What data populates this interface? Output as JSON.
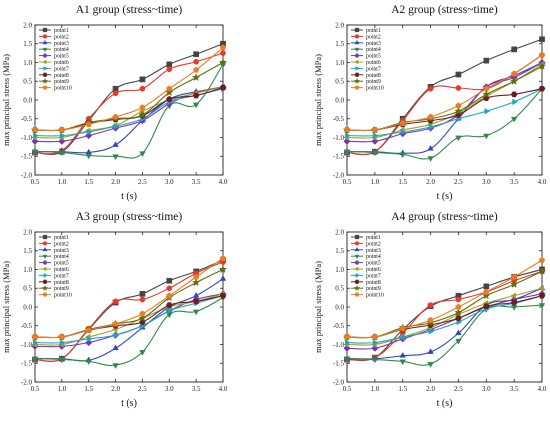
{
  "chart_data": [
    {
      "type": "line",
      "title": "A1 group (stress~time)",
      "xlabel": "t (s)",
      "ylabel": "max principal stress (MPa)",
      "xlim": [
        0.5,
        4.0
      ],
      "ylim": [
        -2.0,
        2.0
      ],
      "x_ticks": [
        "0.5",
        "1.0",
        "1.5",
        "2.0",
        "2.5",
        "3.0",
        "3.5",
        "4.0"
      ],
      "y_ticks": [
        "-2.0",
        "-1.5",
        "-1.0",
        "-0.5",
        "0.0",
        "0.5",
        "1.0",
        "1.5",
        "2.0"
      ],
      "x": [
        0.5,
        1.0,
        1.5,
        2.0,
        2.5,
        3.0,
        3.5,
        4.0
      ],
      "grid": false,
      "legend_position": "top-left",
      "series": [
        {
          "name": "point1",
          "color": "#444444",
          "marker": "square",
          "values": [
            -1.4,
            -1.38,
            -0.55,
            0.3,
            0.55,
            0.95,
            1.22,
            1.5
          ]
        },
        {
          "name": "point2",
          "color": "#e8392b",
          "marker": "circle",
          "values": [
            -1.4,
            -1.35,
            -0.5,
            0.18,
            0.3,
            0.82,
            1.02,
            1.25
          ]
        },
        {
          "name": "point3",
          "color": "#2e46c8",
          "marker": "triangle-up",
          "values": [
            -1.38,
            -1.38,
            -1.4,
            -1.2,
            -0.55,
            0.02,
            0.22,
            0.32
          ]
        },
        {
          "name": "point4",
          "color": "#2c8a4a",
          "marker": "triangle-down",
          "values": [
            -1.37,
            -1.4,
            -1.48,
            -1.5,
            -1.42,
            -0.15,
            -0.12,
            0.95
          ]
        },
        {
          "name": "point5",
          "color": "#7a33b8",
          "marker": "diamond",
          "values": [
            -1.1,
            -1.1,
            -0.95,
            -0.75,
            -0.55,
            -0.1,
            0.2,
            0.35
          ]
        },
        {
          "name": "point6",
          "color": "#a3a21b",
          "marker": "triangle-left",
          "values": [
            -1.0,
            -1.0,
            -0.82,
            -0.68,
            -0.3,
            0.0,
            0.18,
            0.35
          ]
        },
        {
          "name": "point7",
          "color": "#18a7c4",
          "marker": "triangle-right",
          "values": [
            -0.95,
            -0.95,
            -0.85,
            -0.7,
            -0.5,
            -0.05,
            0.12,
            0.3
          ]
        },
        {
          "name": "point8",
          "color": "#6e1e1e",
          "marker": "hexagon",
          "values": [
            -0.8,
            -0.8,
            -0.62,
            -0.52,
            -0.42,
            0.02,
            0.12,
            0.33
          ]
        },
        {
          "name": "point9",
          "color": "#5f6e10",
          "marker": "star",
          "values": [
            -0.8,
            -0.8,
            -0.6,
            -0.5,
            -0.4,
            0.2,
            0.6,
            1.0
          ]
        },
        {
          "name": "point10",
          "color": "#ec7c1d",
          "marker": "pentagon",
          "values": [
            -0.8,
            -0.8,
            -0.65,
            -0.45,
            -0.2,
            0.3,
            0.8,
            1.4
          ]
        }
      ]
    },
    {
      "type": "line",
      "title": "A2 group (stress~time)",
      "xlabel": "t (s)",
      "ylabel": "max principal stress (MPa)",
      "xlim": [
        0.5,
        4.0
      ],
      "ylim": [
        -2.0,
        2.0
      ],
      "x_ticks": [
        "0.5",
        "1.0",
        "1.5",
        "2.0",
        "2.5",
        "3.0",
        "3.5",
        "4.0"
      ],
      "y_ticks": [
        "-2.0",
        "-1.5",
        "-1.0",
        "-0.5",
        "0.0",
        "0.5",
        "1.0",
        "1.5",
        "2.0"
      ],
      "x": [
        0.5,
        1.0,
        1.5,
        2.0,
        2.5,
        3.0,
        3.5,
        4.0
      ],
      "grid": false,
      "legend_position": "top-left",
      "series": [
        {
          "name": "point1",
          "color": "#444444",
          "marker": "square",
          "values": [
            -1.4,
            -1.38,
            -0.5,
            0.35,
            0.68,
            1.05,
            1.35,
            1.62
          ]
        },
        {
          "name": "point2",
          "color": "#e8392b",
          "marker": "circle",
          "values": [
            -1.4,
            -1.38,
            -0.55,
            0.3,
            0.32,
            0.3,
            0.7,
            1.2
          ]
        },
        {
          "name": "point3",
          "color": "#2e46c8",
          "marker": "triangle-up",
          "values": [
            -1.38,
            -1.38,
            -1.42,
            -1.3,
            -0.5,
            0.35,
            0.65,
            1.0
          ]
        },
        {
          "name": "point4",
          "color": "#2c8a4a",
          "marker": "triangle-down",
          "values": [
            -1.37,
            -1.4,
            -1.45,
            -1.55,
            -1.0,
            -0.95,
            -0.5,
            0.3
          ]
        },
        {
          "name": "point5",
          "color": "#7a33b8",
          "marker": "diamond",
          "values": [
            -1.1,
            -1.1,
            -0.9,
            -0.75,
            -0.4,
            0.35,
            0.6,
            1.0
          ]
        },
        {
          "name": "point6",
          "color": "#a3a21b",
          "marker": "triangle-left",
          "values": [
            -1.0,
            -1.0,
            -0.8,
            -0.65,
            -0.35,
            0.1,
            0.5,
            0.95
          ]
        },
        {
          "name": "point7",
          "color": "#18a7c4",
          "marker": "triangle-right",
          "values": [
            -0.95,
            -0.95,
            -0.85,
            -0.72,
            -0.5,
            -0.3,
            -0.05,
            0.3
          ]
        },
        {
          "name": "point8",
          "color": "#6e1e1e",
          "marker": "hexagon",
          "values": [
            -0.8,
            -0.8,
            -0.65,
            -0.55,
            -0.4,
            0.05,
            0.15,
            0.3
          ]
        },
        {
          "name": "point9",
          "color": "#5f6e10",
          "marker": "star",
          "values": [
            -0.8,
            -0.8,
            -0.6,
            -0.5,
            -0.3,
            0.15,
            0.5,
            0.9
          ]
        },
        {
          "name": "point10",
          "color": "#ec7c1d",
          "marker": "pentagon",
          "values": [
            -0.8,
            -0.8,
            -0.62,
            -0.45,
            -0.15,
            0.3,
            0.7,
            1.2
          ]
        }
      ]
    },
    {
      "type": "line",
      "title": "A3 group (stress~time)",
      "xlabel": "t (s)",
      "ylabel": "max principal stress (MPa)",
      "xlim": [
        0.5,
        4.0
      ],
      "ylim": [
        -2.0,
        2.0
      ],
      "x_ticks": [
        "0.5",
        "1.0",
        "1.5",
        "2.0",
        "2.5",
        "3.0",
        "3.5",
        "4.0"
      ],
      "y_ticks": [
        "-2.0",
        "-1.5",
        "-1.0",
        "-0.5",
        "0.0",
        "0.5",
        "1.0",
        "1.5",
        "2.0"
      ],
      "x": [
        0.5,
        1.0,
        1.5,
        2.0,
        2.5,
        3.0,
        3.5,
        4.0
      ],
      "grid": false,
      "legend_position": "top-left",
      "series": [
        {
          "name": "point1",
          "color": "#444444",
          "marker": "square",
          "values": [
            -1.4,
            -1.38,
            -0.6,
            0.12,
            0.35,
            0.7,
            0.95,
            1.25
          ]
        },
        {
          "name": "point2",
          "color": "#e8392b",
          "marker": "circle",
          "values": [
            -1.4,
            -1.38,
            -0.58,
            0.15,
            0.2,
            0.5,
            0.9,
            1.2
          ]
        },
        {
          "name": "point3",
          "color": "#2e46c8",
          "marker": "triangle-up",
          "values": [
            -1.38,
            -1.38,
            -1.42,
            -1.1,
            -0.55,
            0.0,
            0.3,
            0.75
          ]
        },
        {
          "name": "point4",
          "color": "#2c8a4a",
          "marker": "triangle-down",
          "values": [
            -1.37,
            -1.4,
            -1.45,
            -1.55,
            -1.2,
            -0.2,
            -0.12,
            0.25
          ]
        },
        {
          "name": "point5",
          "color": "#7a33b8",
          "marker": "diamond",
          "values": [
            -1.05,
            -1.05,
            -0.95,
            -0.75,
            -0.5,
            -0.1,
            0.2,
            0.35
          ]
        },
        {
          "name": "point6",
          "color": "#a3a21b",
          "marker": "triangle-left",
          "values": [
            -1.0,
            -1.0,
            -0.8,
            -0.6,
            -0.3,
            0.0,
            0.15,
            0.35
          ]
        },
        {
          "name": "point7",
          "color": "#18a7c4",
          "marker": "triangle-right",
          "values": [
            -0.95,
            -0.95,
            -0.85,
            -0.75,
            -0.5,
            -0.1,
            0.1,
            0.3
          ]
        },
        {
          "name": "point8",
          "color": "#6e1e1e",
          "marker": "hexagon",
          "values": [
            -0.8,
            -0.8,
            -0.62,
            -0.5,
            -0.4,
            0.05,
            0.15,
            0.3
          ]
        },
        {
          "name": "point9",
          "color": "#5f6e10",
          "marker": "star",
          "values": [
            -0.8,
            -0.8,
            -0.6,
            -0.45,
            -0.3,
            0.25,
            0.65,
            1.0
          ]
        },
        {
          "name": "point10",
          "color": "#ec7c1d",
          "marker": "pentagon",
          "values": [
            -0.8,
            -0.8,
            -0.62,
            -0.45,
            -0.18,
            0.3,
            0.8,
            1.3
          ]
        }
      ]
    },
    {
      "type": "line",
      "title": "A4 group (stress~time)",
      "xlabel": "t (s)",
      "ylabel": "max principal stress (MPa)",
      "xlim": [
        0.5,
        4.0
      ],
      "ylim": [
        -2.0,
        2.0
      ],
      "x_ticks": [
        "0.5",
        "1.0",
        "1.5",
        "2.0",
        "2.5",
        "3.0",
        "3.5",
        "4.0"
      ],
      "y_ticks": [
        "-2.0",
        "-1.5",
        "-1.0",
        "-0.5",
        "0.0",
        "0.5",
        "1.0",
        "1.5",
        "2.0"
      ],
      "x": [
        0.5,
        1.0,
        1.5,
        2.0,
        2.5,
        3.0,
        3.5,
        4.0
      ],
      "grid": false,
      "legend_position": "top-left",
      "series": [
        {
          "name": "point1",
          "color": "#444444",
          "marker": "square",
          "values": [
            -1.4,
            -1.35,
            -0.6,
            0.02,
            0.3,
            0.55,
            0.8,
            1.0
          ]
        },
        {
          "name": "point2",
          "color": "#e8392b",
          "marker": "circle",
          "values": [
            -1.4,
            -1.35,
            -0.7,
            0.05,
            0.2,
            0.4,
            0.7,
            0.95
          ]
        },
        {
          "name": "point3",
          "color": "#2e46c8",
          "marker": "triangle-up",
          "values": [
            -1.38,
            -1.38,
            -1.3,
            -1.2,
            -0.7,
            0.05,
            0.2,
            0.5
          ]
        },
        {
          "name": "point4",
          "color": "#2c8a4a",
          "marker": "triangle-down",
          "values": [
            -1.37,
            -1.4,
            -1.45,
            -1.52,
            -0.9,
            -0.05,
            0.0,
            0.05
          ]
        },
        {
          "name": "point5",
          "color": "#7a33b8",
          "marker": "diamond",
          "values": [
            -1.1,
            -1.1,
            -0.85,
            -0.6,
            -0.3,
            0.0,
            0.2,
            0.35
          ]
        },
        {
          "name": "point6",
          "color": "#a3a21b",
          "marker": "triangle-left",
          "values": [
            -1.0,
            -1.0,
            -0.8,
            -0.55,
            -0.2,
            0.1,
            0.3,
            0.5
          ]
        },
        {
          "name": "point7",
          "color": "#18a7c4",
          "marker": "triangle-right",
          "values": [
            -0.95,
            -0.95,
            -0.8,
            -0.65,
            -0.4,
            -0.05,
            0.1,
            0.3
          ]
        },
        {
          "name": "point8",
          "color": "#6e1e1e",
          "marker": "hexagon",
          "values": [
            -0.8,
            -0.8,
            -0.6,
            -0.48,
            -0.3,
            0.02,
            0.12,
            0.3
          ]
        },
        {
          "name": "point9",
          "color": "#5f6e10",
          "marker": "star",
          "values": [
            -0.8,
            -0.8,
            -0.55,
            -0.42,
            -0.15,
            0.3,
            0.6,
            0.95
          ]
        },
        {
          "name": "point10",
          "color": "#ec7c1d",
          "marker": "pentagon",
          "values": [
            -0.8,
            -0.8,
            -0.58,
            -0.35,
            0.0,
            0.4,
            0.8,
            1.25
          ]
        }
      ]
    }
  ]
}
